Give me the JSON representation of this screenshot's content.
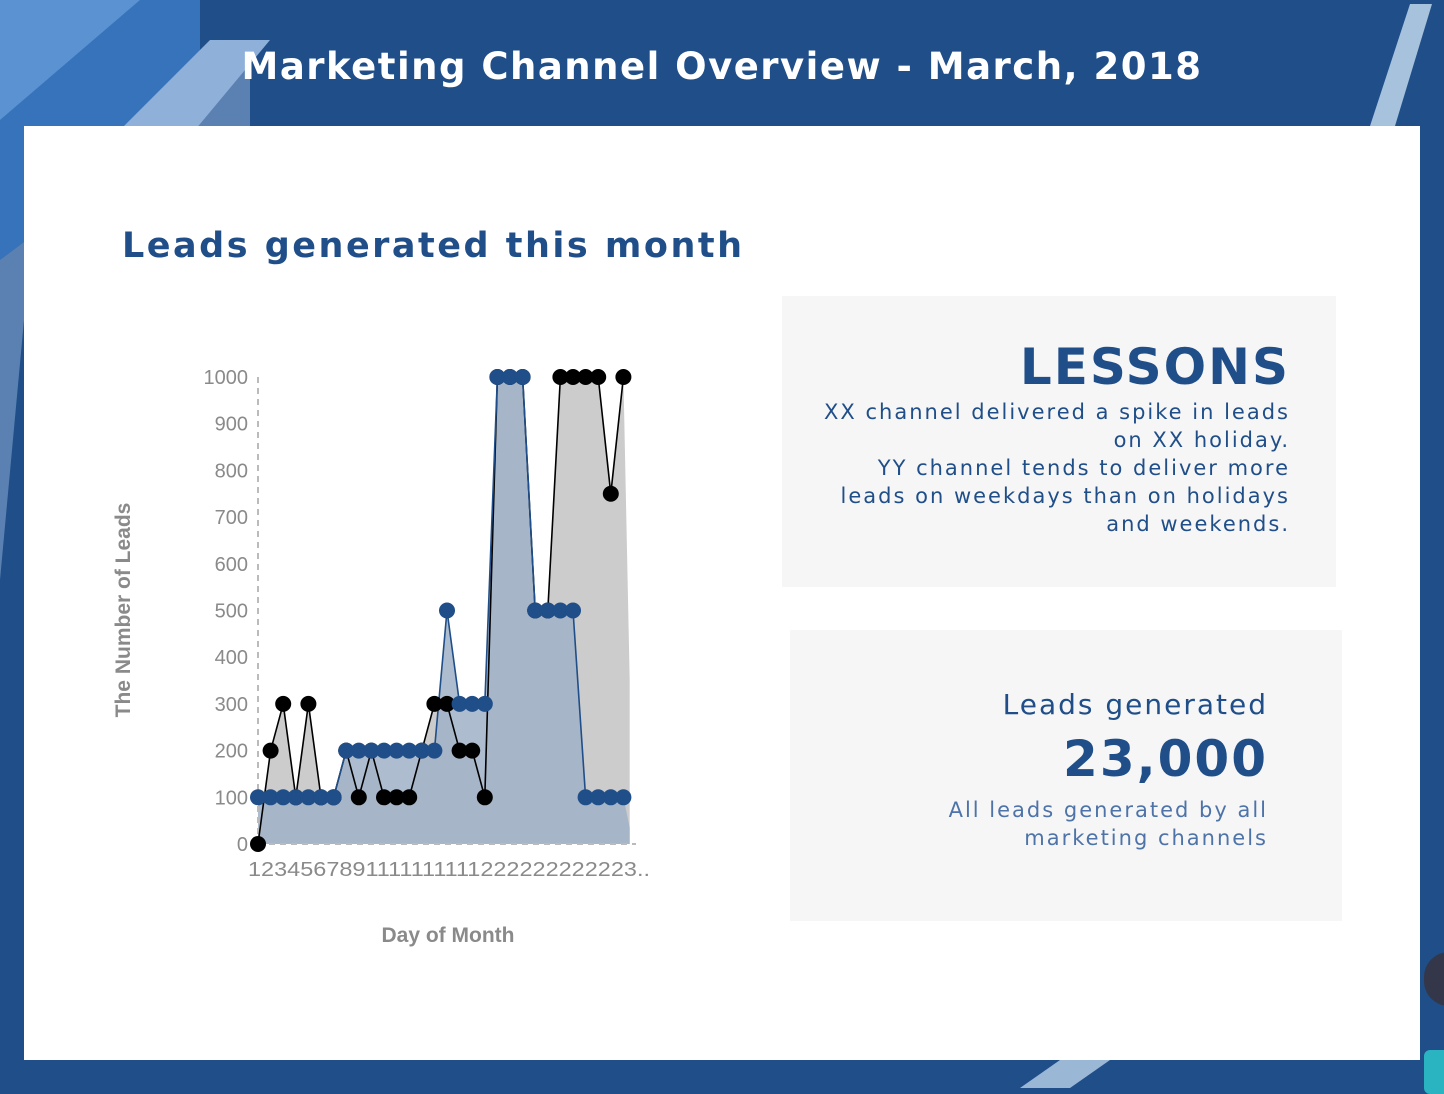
{
  "header": {
    "title": "Marketing Channel Overview - March, 2018"
  },
  "section": {
    "title": "Leads generated this month"
  },
  "lessons": {
    "heading": "LESSONS",
    "lines": [
      "XX channel delivered a spike in leads on XX holiday.",
      "YY channel tends to deliver more leads on weekdays than on holidays and weekends."
    ]
  },
  "leads": {
    "label": "Leads generated",
    "value": "23,000",
    "description": "All leads generated by all marketing channels"
  },
  "colors": {
    "brand_blue": "#1f4e89",
    "series_black": "#000000",
    "series_blue": "#1f4e89",
    "area_grey": "#cccccc",
    "area_blue": "#9fb0c6"
  },
  "chart_data": {
    "type": "area",
    "xlabel": "Day of Month",
    "ylabel": "The Number of Leads",
    "ylim": [
      0,
      1000
    ],
    "yticks": [
      0,
      100,
      200,
      300,
      400,
      500,
      600,
      700,
      800,
      900,
      1000
    ],
    "x_tick_text": "1234567891111111111222222222223..",
    "x": [
      1,
      2,
      3,
      4,
      5,
      6,
      7,
      8,
      9,
      10,
      11,
      12,
      13,
      14,
      15,
      16,
      17,
      18,
      19,
      20,
      21,
      22,
      23,
      24,
      25,
      26,
      27,
      28,
      29,
      30,
      31
    ],
    "series": [
      {
        "color": "#000000",
        "values": [
          0,
          200,
          300,
          100,
          300,
          100,
          100,
          200,
          100,
          200,
          100,
          100,
          100,
          200,
          300,
          300,
          200,
          200,
          100,
          1000,
          1000,
          1000,
          500,
          500,
          1000,
          1000,
          1000,
          1000,
          750,
          1000,
          null
        ]
      },
      {
        "color": "#1f4e89",
        "values": [
          100,
          100,
          100,
          100,
          100,
          100,
          100,
          200,
          200,
          200,
          200,
          200,
          200,
          200,
          200,
          500,
          300,
          300,
          300,
          1000,
          1000,
          1000,
          500,
          500,
          500,
          500,
          100,
          100,
          100,
          100,
          null
        ]
      }
    ],
    "grid": false,
    "legend": "none"
  }
}
